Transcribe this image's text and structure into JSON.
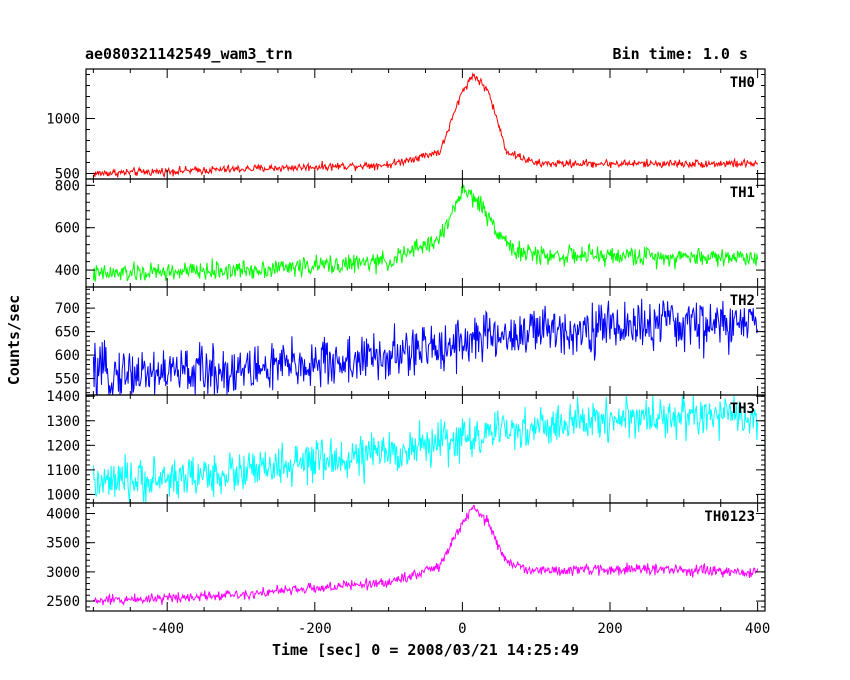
{
  "header": {
    "title_left": "ae080321142549_wam3_trn",
    "title_right": "Bin time: 1.0 s"
  },
  "chart_data": {
    "type": "line",
    "shared_x": {
      "label": "Time [sec] 0 = 2008/03/21 14:25:49",
      "range": [
        -510,
        410
      ],
      "ticks": [
        -400,
        -200,
        0,
        200,
        400
      ],
      "bin": 1.0
    },
    "ylabel": "Counts/sec",
    "panels": [
      {
        "name": "TH0",
        "color": "#ff0000",
        "ylim": [
          450,
          1450
        ],
        "yticks": [
          500,
          1000
        ],
        "baseline_points": [
          [
            -500,
            500
          ],
          [
            -300,
            540
          ],
          [
            -100,
            580
          ],
          [
            -30,
            700
          ],
          [
            0,
            1250
          ],
          [
            15,
            1400
          ],
          [
            35,
            1250
          ],
          [
            60,
            700
          ],
          [
            100,
            590
          ],
          [
            250,
            590
          ],
          [
            400,
            590
          ]
        ],
        "noise": 18
      },
      {
        "name": "TH1",
        "color": "#00ff00",
        "ylim": [
          320,
          830
        ],
        "yticks": [
          400,
          600,
          800
        ],
        "baseline_points": [
          [
            -500,
            380
          ],
          [
            -300,
            400
          ],
          [
            -100,
            440
          ],
          [
            -30,
            550
          ],
          [
            0,
            780
          ],
          [
            20,
            730
          ],
          [
            45,
            600
          ],
          [
            70,
            490
          ],
          [
            100,
            470
          ],
          [
            250,
            465
          ],
          [
            400,
            460
          ]
        ],
        "noise": 22
      },
      {
        "name": "TH2",
        "color": "#0000ff",
        "ylim": [
          515,
          745
        ],
        "yticks": [
          550,
          600,
          650,
          700
        ],
        "baseline_points": [
          [
            -500,
            560
          ],
          [
            -300,
            568
          ],
          [
            -100,
            595
          ],
          [
            0,
            630
          ],
          [
            100,
            650
          ],
          [
            250,
            665
          ],
          [
            400,
            665
          ]
        ],
        "noise": 27
      },
      {
        "name": "TH3",
        "color": "#00ffff",
        "ylim": [
          965,
          1405
        ],
        "yticks": [
          1000,
          1100,
          1200,
          1300,
          1400
        ],
        "baseline_points": [
          [
            -500,
            1040
          ],
          [
            -300,
            1090
          ],
          [
            -200,
            1130
          ],
          [
            -100,
            1170
          ],
          [
            0,
            1230
          ],
          [
            100,
            1270
          ],
          [
            200,
            1310
          ],
          [
            300,
            1320
          ],
          [
            400,
            1310
          ]
        ],
        "noise": 42
      },
      {
        "name": "TH0123",
        "color": "#ff00ff",
        "ylim": [
          2330,
          4180
        ],
        "yticks": [
          2500,
          3000,
          3500,
          4000
        ],
        "baseline_points": [
          [
            -500,
            2500
          ],
          [
            -300,
            2620
          ],
          [
            -100,
            2820
          ],
          [
            -30,
            3100
          ],
          [
            0,
            3850
          ],
          [
            15,
            4080
          ],
          [
            35,
            3850
          ],
          [
            60,
            3150
          ],
          [
            100,
            3020
          ],
          [
            250,
            3050
          ],
          [
            400,
            2980
          ]
        ],
        "noise": 45
      }
    ]
  }
}
